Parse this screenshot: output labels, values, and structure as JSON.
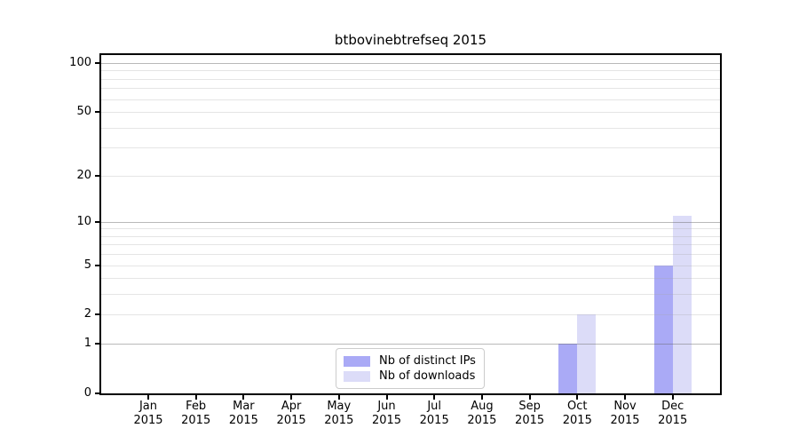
{
  "chart_data": {
    "type": "bar",
    "title": "btbovinebtrefseq 2015",
    "x_year": "2015",
    "categories": [
      "Jan",
      "Feb",
      "Mar",
      "Apr",
      "May",
      "Jun",
      "Jul",
      "Aug",
      "Sep",
      "Oct",
      "Nov",
      "Dec"
    ],
    "series": [
      {
        "name": "Nb of distinct IPs",
        "color": "#aaaaf6",
        "values": [
          0,
          0,
          0,
          0,
          0,
          0,
          0,
          0,
          0,
          1,
          0,
          5
        ]
      },
      {
        "name": "Nb of downloads",
        "color": "#dcdcf8",
        "values": [
          0,
          0,
          0,
          0,
          0,
          0,
          0,
          0,
          0,
          2,
          0,
          11
        ]
      }
    ],
    "y_scale": "log(1+x)",
    "ylim": [
      0,
      100
    ],
    "y_ticks": [
      0,
      1,
      2,
      5,
      10,
      20,
      50,
      100
    ],
    "major_gridlines": [
      1,
      10,
      100
    ],
    "minor_gridlines": [
      2,
      3,
      4,
      5,
      6,
      7,
      8,
      9,
      20,
      30,
      40,
      50,
      60,
      70,
      80,
      90
    ],
    "grid_major_color": "#bebebe",
    "grid_minor_color": "#ececec",
    "legend_position": "lower center",
    "background_color": "#ffffff",
    "axis_color": "#000000"
  }
}
